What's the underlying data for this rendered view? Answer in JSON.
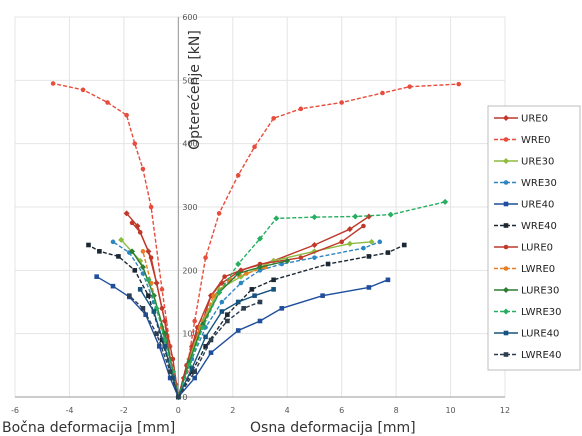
{
  "chart_data": {
    "type": "line",
    "xlim": [
      -6,
      12
    ],
    "ylim": [
      0,
      600
    ],
    "x_ticks": [
      "-6",
      "-4",
      "-2",
      "0",
      "2",
      "4",
      "6",
      "8",
      "10",
      "12"
    ],
    "y_ticks": [
      "0",
      "100",
      "200",
      "300",
      "400",
      "500",
      "600"
    ],
    "ylabel": "Opterećenje [kN]",
    "xlabel_left": "Bočna deformacija [mm]",
    "xlabel_right": "Osna deformacija [mm]",
    "grid": true,
    "legend_position": "right",
    "series": [
      {
        "name": "URE0",
        "color": "#c0392b",
        "dash": false,
        "marker": "diamond",
        "points": [
          [
            0,
            0
          ],
          [
            0.2,
            30
          ],
          [
            0.5,
            80
          ],
          [
            0.9,
            120
          ],
          [
            1.2,
            160
          ],
          [
            1.6,
            180
          ],
          [
            2.3,
            200
          ],
          [
            3.5,
            215
          ],
          [
            5,
            240
          ],
          [
            6.3,
            265
          ],
          [
            7,
            285
          ],
          [
            -0.1,
            20
          ],
          [
            -0.3,
            60
          ],
          [
            -0.5,
            120
          ],
          [
            -0.8,
            180
          ],
          [
            -1.1,
            230
          ],
          [
            -1.5,
            270
          ],
          [
            -1.9,
            290
          ]
        ]
      },
      {
        "name": "WRE0",
        "color": "#e74c3c",
        "dash": true,
        "marker": "circle",
        "points": [
          [
            0,
            0
          ],
          [
            0.3,
            40
          ],
          [
            0.6,
            120
          ],
          [
            1.0,
            220
          ],
          [
            1.5,
            290
          ],
          [
            2.2,
            350
          ],
          [
            2.8,
            395
          ],
          [
            3.5,
            440
          ],
          [
            4.5,
            455
          ],
          [
            6,
            465
          ],
          [
            7.5,
            480
          ],
          [
            8.5,
            490
          ],
          [
            10.3,
            494
          ],
          [
            -0.1,
            20
          ],
          [
            -0.3,
            80
          ],
          [
            -0.6,
            170
          ],
          [
            -1.0,
            300
          ],
          [
            -1.3,
            360
          ],
          [
            -1.6,
            400
          ],
          [
            -1.9,
            445
          ],
          [
            -2.6,
            465
          ],
          [
            -3.5,
            485
          ],
          [
            -4.6,
            495
          ]
        ]
      },
      {
        "name": "URE30",
        "color": "#8dbb3f",
        "dash": false,
        "marker": "diamond",
        "points": [
          [
            0,
            0
          ],
          [
            0.4,
            60
          ],
          [
            0.9,
            120
          ],
          [
            1.5,
            170
          ],
          [
            2.3,
            190
          ],
          [
            3.5,
            215
          ],
          [
            5,
            230
          ],
          [
            6.3,
            242
          ],
          [
            7.1,
            245
          ],
          [
            -0.2,
            40
          ],
          [
            -0.5,
            100
          ],
          [
            -0.9,
            160
          ],
          [
            -1.4,
            215
          ],
          [
            -2.1,
            248
          ]
        ]
      },
      {
        "name": "WRE30",
        "color": "#2e86c1",
        "dash": true,
        "marker": "circle",
        "points": [
          [
            0,
            0
          ],
          [
            0.5,
            60
          ],
          [
            1,
            110
          ],
          [
            1.6,
            150
          ],
          [
            2.3,
            180
          ],
          [
            3,
            200
          ],
          [
            3.8,
            210
          ],
          [
            5,
            220
          ],
          [
            6.8,
            235
          ],
          [
            7.4,
            245
          ],
          [
            -0.2,
            40
          ],
          [
            -0.5,
            100
          ],
          [
            -0.9,
            150
          ],
          [
            -1.3,
            195
          ],
          [
            -1.8,
            228
          ],
          [
            -2.4,
            245
          ]
        ]
      },
      {
        "name": "URE40",
        "color": "#1f4e9c",
        "dash": false,
        "marker": "square",
        "points": [
          [
            0,
            0
          ],
          [
            0.6,
            30
          ],
          [
            1.2,
            70
          ],
          [
            2.2,
            105
          ],
          [
            3,
            120
          ],
          [
            3.8,
            140
          ],
          [
            5.3,
            160
          ],
          [
            7,
            173
          ],
          [
            7.7,
            185
          ],
          [
            -0.3,
            30
          ],
          [
            -0.7,
            80
          ],
          [
            -1.2,
            130
          ],
          [
            -1.8,
            158
          ],
          [
            -2.4,
            175
          ],
          [
            -3,
            190
          ]
        ]
      },
      {
        "name": "WRE40",
        "color": "#1c2833",
        "dash": true,
        "marker": "square",
        "points": [
          [
            0,
            0
          ],
          [
            0.5,
            40
          ],
          [
            1.0,
            80
          ],
          [
            1.8,
            130
          ],
          [
            2.7,
            170
          ],
          [
            3.5,
            185
          ],
          [
            5.5,
            210
          ],
          [
            7,
            222
          ],
          [
            7.7,
            228
          ],
          [
            8.3,
            240
          ],
          [
            -0.2,
            30
          ],
          [
            -0.6,
            90
          ],
          [
            -1.1,
            160
          ],
          [
            -1.6,
            200
          ],
          [
            -2.2,
            222
          ],
          [
            -2.9,
            230
          ],
          [
            -3.3,
            240
          ]
        ]
      },
      {
        "name": "LURE0",
        "color": "#c0392b",
        "dash": false,
        "marker": "circle",
        "points": [
          [
            0,
            0
          ],
          [
            0.3,
            50
          ],
          [
            0.7,
            110
          ],
          [
            1.2,
            160
          ],
          [
            1.7,
            190
          ],
          [
            2.3,
            200
          ],
          [
            3,
            210
          ],
          [
            4.5,
            220
          ],
          [
            6,
            245
          ],
          [
            6.8,
            270
          ],
          [
            -0.2,
            60
          ],
          [
            -0.6,
            140
          ],
          [
            -1.0,
            220
          ],
          [
            -1.4,
            260
          ],
          [
            -1.7,
            275
          ]
        ]
      },
      {
        "name": "LWRE0",
        "color": "#e67e22",
        "dash": true,
        "marker": "circle",
        "points": [
          [
            0,
            0
          ],
          [
            0.4,
            50
          ],
          [
            0.8,
            110
          ],
          [
            1.3,
            160
          ],
          [
            1.9,
            185
          ],
          [
            2.5,
            195
          ],
          [
            3.2,
            205
          ],
          [
            -0.2,
            40
          ],
          [
            -0.6,
            110
          ],
          [
            -1.0,
            180
          ],
          [
            -1.3,
            230
          ]
        ]
      },
      {
        "name": "LURE30",
        "color": "#2e7d32",
        "dash": false,
        "marker": "diamond",
        "points": [
          [
            0,
            0
          ],
          [
            0.4,
            55
          ],
          [
            0.9,
            115
          ],
          [
            1.5,
            165
          ],
          [
            2.2,
            195
          ],
          [
            3,
            205
          ],
          [
            4,
            215
          ],
          [
            -0.2,
            40
          ],
          [
            -0.5,
            100
          ],
          [
            -0.9,
            160
          ],
          [
            -1.3,
            205
          ],
          [
            -1.7,
            230
          ]
        ]
      },
      {
        "name": "LWRE30",
        "color": "#27ae60",
        "dash": true,
        "marker": "diamond",
        "points": [
          [
            0,
            0
          ],
          [
            0.4,
            50
          ],
          [
            0.9,
            110
          ],
          [
            1.5,
            165
          ],
          [
            2.2,
            210
          ],
          [
            3,
            250
          ],
          [
            3.6,
            282
          ],
          [
            5,
            284
          ],
          [
            6.5,
            285
          ],
          [
            7.8,
            288
          ],
          [
            9.8,
            308
          ],
          [
            -0.2,
            40
          ],
          [
            -0.5,
            90
          ],
          [
            -0.8,
            140
          ],
          [
            -1.1,
            185
          ]
        ]
      },
      {
        "name": "LURE40",
        "color": "#16537e",
        "dash": false,
        "marker": "square",
        "points": [
          [
            0,
            0
          ],
          [
            0.5,
            45
          ],
          [
            1,
            95
          ],
          [
            1.6,
            135
          ],
          [
            2.2,
            150
          ],
          [
            2.8,
            160
          ],
          [
            3.5,
            170
          ],
          [
            -0.2,
            30
          ],
          [
            -0.5,
            80
          ],
          [
            -0.9,
            135
          ],
          [
            -1.4,
            170
          ]
        ]
      },
      {
        "name": "LWRE40",
        "color": "#2c3e50",
        "dash": true,
        "marker": "square",
        "points": [
          [
            0,
            0
          ],
          [
            0.6,
            40
          ],
          [
            1.2,
            90
          ],
          [
            1.8,
            120
          ],
          [
            2.4,
            140
          ],
          [
            3,
            150
          ],
          [
            -0.3,
            40
          ],
          [
            -0.8,
            100
          ],
          [
            -1.3,
            140
          ],
          [
            -1.8,
            160
          ]
        ]
      }
    ]
  }
}
